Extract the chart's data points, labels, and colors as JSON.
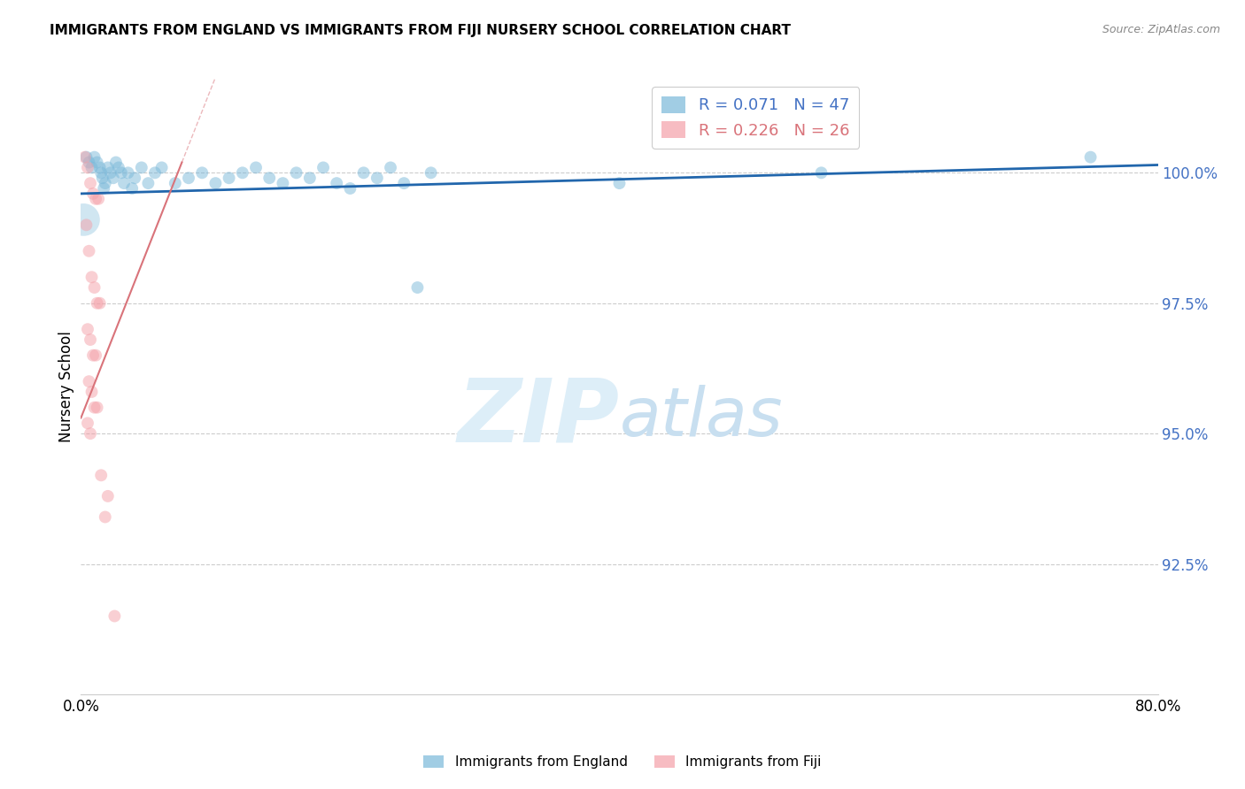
{
  "title": "IMMIGRANTS FROM ENGLAND VS IMMIGRANTS FROM FIJI NURSERY SCHOOL CORRELATION CHART",
  "source": "Source: ZipAtlas.com",
  "ylabel": "Nursery School",
  "y_tick_labels": [
    "100.0%",
    "97.5%",
    "95.0%",
    "92.5%"
  ],
  "y_tick_values": [
    100.0,
    97.5,
    95.0,
    92.5
  ],
  "x_range": [
    0.0,
    80.0
  ],
  "y_range": [
    90.0,
    101.8
  ],
  "england_R": 0.071,
  "england_N": 47,
  "fiji_R": 0.226,
  "fiji_N": 26,
  "england_color": "#7ab8d9",
  "fiji_color": "#f4a0a8",
  "trend_england_color": "#2166ac",
  "trend_fiji_color": "#d9737a",
  "watermark_zip_color": "#ddeef8",
  "watermark_atlas_color": "#c8dff0",
  "england_x": [
    0.4,
    0.6,
    0.8,
    1.0,
    1.2,
    1.4,
    1.5,
    1.6,
    1.7,
    1.8,
    2.0,
    2.2,
    2.4,
    2.6,
    2.8,
    3.0,
    3.2,
    3.5,
    3.8,
    4.0,
    4.5,
    5.0,
    5.5,
    6.0,
    7.0,
    8.0,
    9.0,
    10.0,
    11.0,
    12.0,
    13.0,
    14.0,
    15.0,
    16.0,
    17.0,
    18.0,
    19.0,
    20.0,
    21.0,
    22.0,
    23.0,
    24.0,
    25.0,
    26.0,
    40.0,
    55.0,
    75.0
  ],
  "england_y": [
    100.3,
    100.2,
    100.1,
    100.3,
    100.2,
    100.1,
    100.0,
    99.9,
    99.7,
    99.8,
    100.1,
    100.0,
    99.9,
    100.2,
    100.1,
    100.0,
    99.8,
    100.0,
    99.7,
    99.9,
    100.1,
    99.8,
    100.0,
    100.1,
    99.8,
    99.9,
    100.0,
    99.8,
    99.9,
    100.0,
    100.1,
    99.9,
    99.8,
    100.0,
    99.9,
    100.1,
    99.8,
    99.7,
    100.0,
    99.9,
    100.1,
    99.8,
    97.8,
    100.0,
    99.8,
    100.0,
    100.3
  ],
  "england_sizes": [
    100,
    100,
    100,
    100,
    100,
    100,
    100,
    100,
    100,
    100,
    100,
    100,
    100,
    100,
    100,
    100,
    100,
    100,
    100,
    100,
    100,
    100,
    100,
    100,
    100,
    100,
    100,
    100,
    100,
    100,
    100,
    100,
    100,
    100,
    100,
    100,
    100,
    100,
    100,
    100,
    100,
    100,
    100,
    100,
    100,
    100,
    100
  ],
  "england_large_x": [
    0.2
  ],
  "england_large_y": [
    99.1
  ],
  "england_large_size": [
    700
  ],
  "fiji_x": [
    0.3,
    0.5,
    0.7,
    0.9,
    1.1,
    1.3,
    0.4,
    0.6,
    0.8,
    1.0,
    1.2,
    1.4,
    0.5,
    0.7,
    0.9,
    1.1,
    0.6,
    0.8,
    1.0,
    1.2,
    0.5,
    0.7,
    2.0,
    2.5,
    1.5,
    1.8
  ],
  "fiji_y": [
    100.3,
    100.1,
    99.8,
    99.6,
    99.5,
    99.5,
    99.0,
    98.5,
    98.0,
    97.8,
    97.5,
    97.5,
    97.0,
    96.8,
    96.5,
    96.5,
    96.0,
    95.8,
    95.5,
    95.5,
    95.2,
    95.0,
    93.8,
    91.5,
    94.2,
    93.4
  ],
  "fiji_sizes": [
    100,
    100,
    100,
    100,
    100,
    100,
    100,
    100,
    100,
    100,
    100,
    100,
    100,
    100,
    100,
    100,
    100,
    100,
    100,
    100,
    100,
    100,
    100,
    100,
    100,
    100
  ],
  "eng_trend_x": [
    0.0,
    80.0
  ],
  "eng_trend_y": [
    99.6,
    100.15
  ],
  "fiji_trend_x": [
    0.0,
    7.5
  ],
  "fiji_trend_y": [
    95.3,
    100.2
  ]
}
